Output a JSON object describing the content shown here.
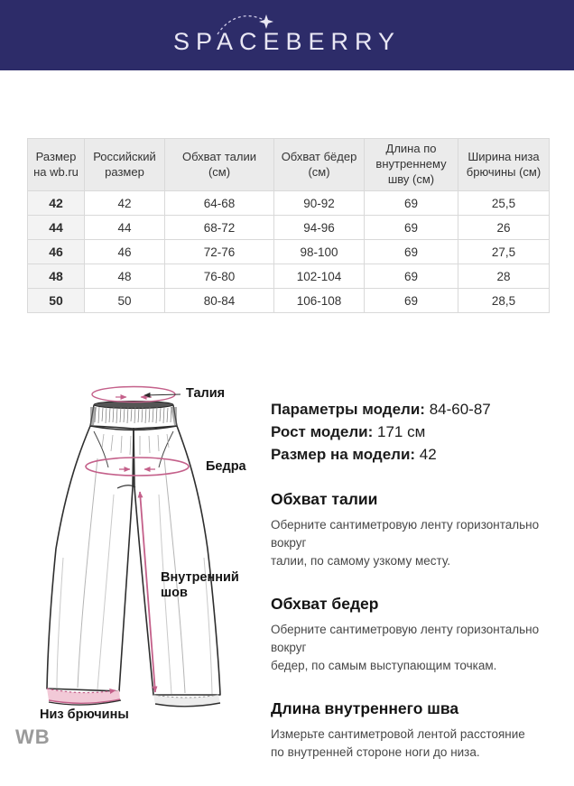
{
  "header": {
    "brand": "SPACEBERRY",
    "background_color": "#2d2c69",
    "text_color": "#e9e7f4"
  },
  "size_table": {
    "columns": [
      "Размер на wb.ru",
      "Российский размер",
      "Обхват талии (см)",
      "Обхват бёдер (см)",
      "Длина по внутреннему шву (см)",
      "Ширина низа брючины (см)"
    ],
    "rows": [
      [
        "42",
        "42",
        "64-68",
        "90-92",
        "69",
        "25,5"
      ],
      [
        "44",
        "44",
        "68-72",
        "94-96",
        "69",
        "26"
      ],
      [
        "46",
        "46",
        "72-76",
        "98-100",
        "69",
        "27,5"
      ],
      [
        "48",
        "48",
        "76-80",
        "102-104",
        "69",
        "28"
      ],
      [
        "50",
        "50",
        "80-84",
        "106-108",
        "69",
        "28,5"
      ]
    ]
  },
  "diagram": {
    "labels": {
      "waist": "Талия",
      "hips": "Бедра",
      "inseam": "Внутренний шов",
      "hem": "Низ брючины"
    },
    "accent_color": "#c4608a"
  },
  "model_info": {
    "params_label": "Параметры модели:",
    "params_value": "84-60-87",
    "height_label": "Рост модели:",
    "height_value": "171 см",
    "size_label": "Размер на модели:",
    "size_value": "42"
  },
  "measure_guide": [
    {
      "title": "Обхват талии",
      "text": "Оберните сантиметровую ленту горизонтально вокруг\nталии, по самому узкому месту."
    },
    {
      "title": "Обхват бедер",
      "text": "Оберните сантиметровую ленту горизонтально вокруг\nбедер, по самым выступающим точкам."
    },
    {
      "title": "Длина внутреннего шва",
      "text": "Измерьте сантиметровой лентой расстояние\nпо внутренней стороне ноги до низа."
    }
  ],
  "footer": {
    "watermark": "WB"
  }
}
